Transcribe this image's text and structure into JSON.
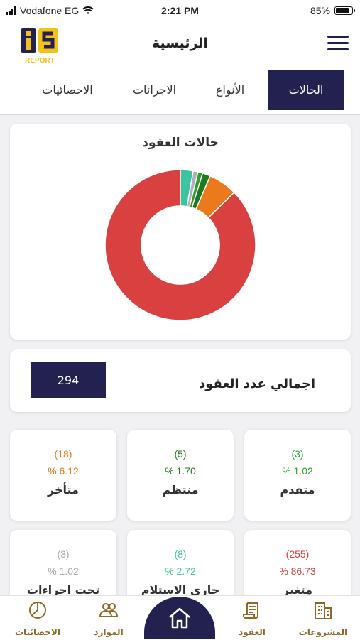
{
  "status_bar": {
    "carrier": "Vodafone EG",
    "time": "2:21 PM",
    "battery": "85%",
    "battery_level": 0.85
  },
  "header": {
    "title": "الرئيسية",
    "logo_text": "REPORT"
  },
  "tabs": [
    {
      "label": "الحالات",
      "active": true
    },
    {
      "label": "الأنواع",
      "active": false
    },
    {
      "label": "الاجرائات",
      "active": false
    },
    {
      "label": "الاحصائيات",
      "active": false
    }
  ],
  "chart_card": {
    "title": "حالات العقود"
  },
  "chart_data": {
    "type": "pie",
    "title": "حالات العقود",
    "series": [
      {
        "name": "متغير",
        "value": 255,
        "color": "#d94040"
      },
      {
        "name": "جاري الاستلام",
        "value": 8,
        "color": "#3cc4a0"
      },
      {
        "name": "تحت اجراءات السحب",
        "value": 3,
        "color": "#b0b0b8"
      },
      {
        "name": "متقدم",
        "value": 3,
        "color": "#2e9e2e"
      },
      {
        "name": "منتظم",
        "value": 5,
        "color": "#1f7a1f"
      },
      {
        "name": "متأخر",
        "value": 18,
        "color": "#ea7a1c"
      }
    ],
    "hole": 0.52
  },
  "total": {
    "label": "اجمالي عدد العقود",
    "value": "294"
  },
  "stats": [
    {
      "count": "(3)",
      "pct": "% 1.02",
      "label": "متقدم",
      "color": "#2fa52f"
    },
    {
      "count": "(5)",
      "pct": "% 1.70",
      "label": "منتظم",
      "color": "#1f7a1f"
    },
    {
      "count": "(18)",
      "pct": "% 6.12",
      "label": "متأخر",
      "color": "#e07a1c"
    },
    {
      "count": "(255)",
      "pct": "% 86.73",
      "label": "متغير",
      "color": "#d94040"
    },
    {
      "count": "(8)",
      "pct": "% 2.72",
      "label": "جاري الاستلام",
      "color": "#3cc4a0"
    },
    {
      "count": "(3)",
      "pct": "% 1.02",
      "label": "تحت اجراءات السحب",
      "color": "#a8a8b0"
    }
  ],
  "bottom_nav": [
    {
      "label": "المشروعات",
      "icon": "buildings-icon"
    },
    {
      "label": "العقود",
      "icon": "scroll-icon"
    },
    {
      "label": "الموارد",
      "icon": "users-icon"
    },
    {
      "label": "الاحصائيات",
      "icon": "pie-chart-icon"
    }
  ],
  "colors": {
    "primary": "#22214f",
    "accent": "#8b6a2a",
    "logo_yellow": "#f2c218"
  }
}
